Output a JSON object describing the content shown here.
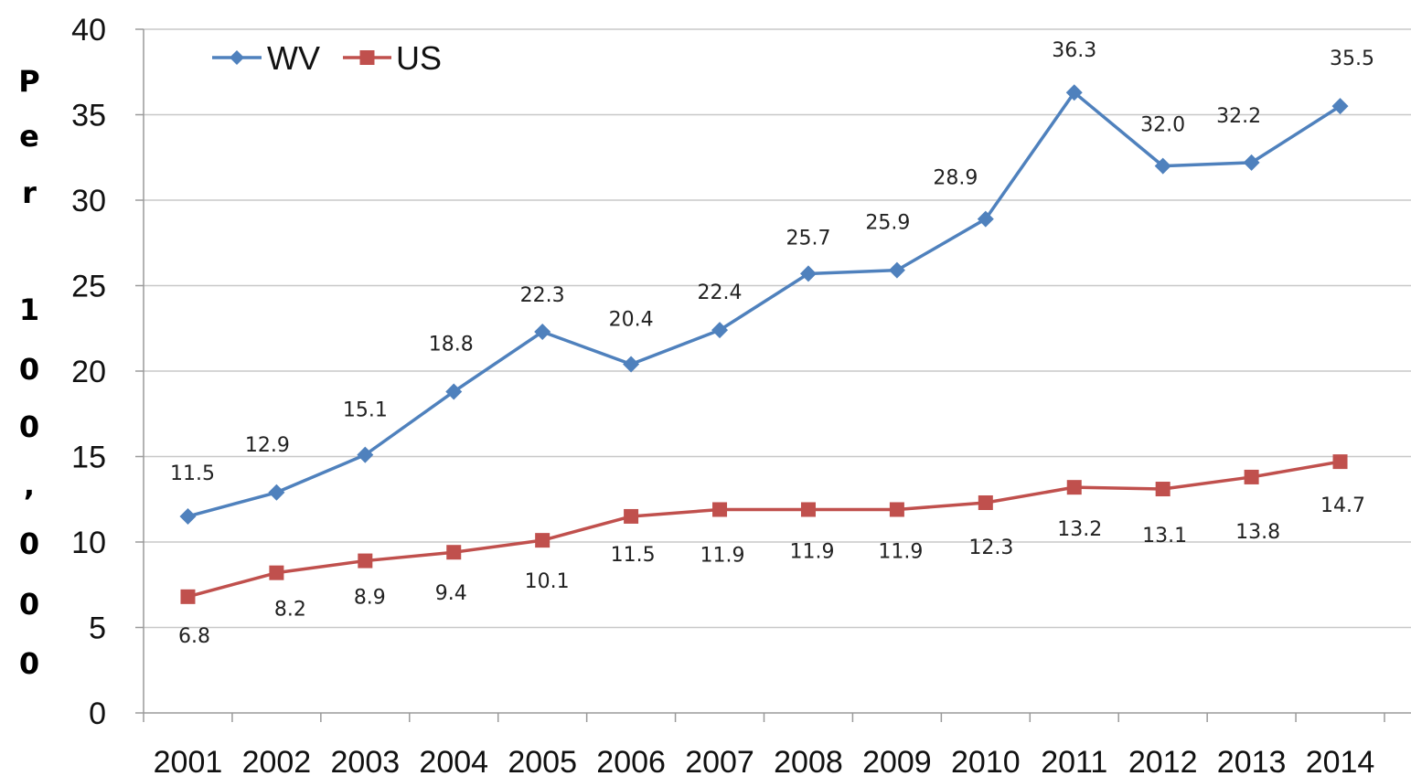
{
  "chart_data": {
    "type": "line",
    "ylabel": "Per 100,000",
    "ylim": [
      0,
      40
    ],
    "yticks": [
      0,
      5,
      10,
      15,
      20,
      25,
      30,
      35,
      40
    ],
    "grid": "horizontal",
    "legend_position": "top-left",
    "categories": [
      "2001",
      "2002",
      "2003",
      "2004",
      "2005",
      "2006",
      "2007",
      "2008",
      "2009",
      "2010",
      "2011",
      "2012",
      "2013",
      "2014"
    ],
    "series": [
      {
        "name": "WV",
        "color": "#4f81bd",
        "marker": "diamond",
        "values": [
          11.5,
          12.9,
          15.1,
          18.8,
          22.3,
          20.4,
          22.4,
          25.7,
          25.9,
          28.9,
          36.3,
          32.0,
          32.2,
          35.5
        ],
        "labels": [
          "11.5",
          "12.9",
          "15.1",
          "18.8",
          "22.3",
          "20.4",
          "22.4",
          "25.7",
          "25.9",
          "28.9",
          "36.3",
          "32.0",
          "32.2",
          "35.5"
        ]
      },
      {
        "name": "US",
        "color": "#c0504d",
        "marker": "square",
        "values": [
          6.8,
          8.2,
          8.9,
          9.4,
          10.1,
          11.5,
          11.9,
          11.9,
          11.9,
          12.3,
          13.2,
          13.1,
          13.8,
          14.7
        ],
        "labels": [
          "6.8",
          "8.2",
          "8.9",
          "9.4",
          "10.1",
          "11.5",
          "11.9",
          "11.9",
          "11.9",
          "12.3",
          "13.2",
          "13.1",
          "13.8",
          "14.7"
        ]
      }
    ]
  }
}
